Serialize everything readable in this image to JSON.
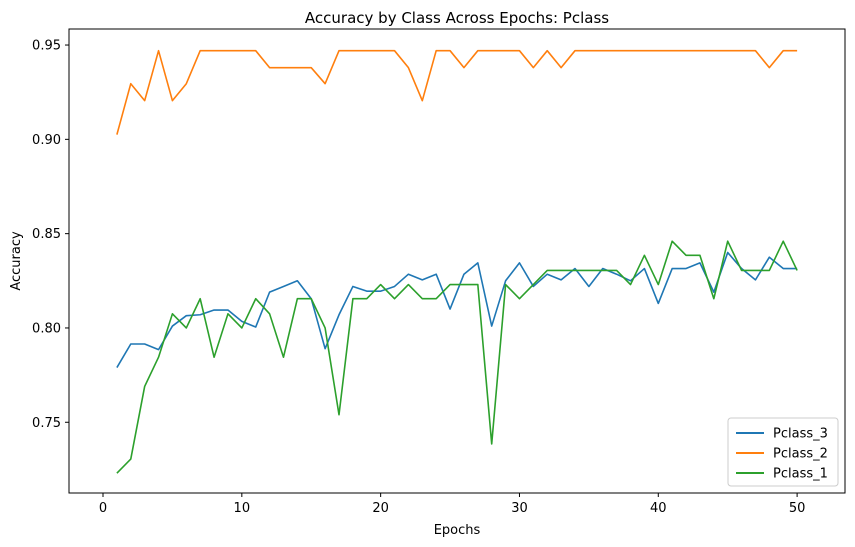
{
  "chart_data": {
    "type": "line",
    "title": "Accuracy by Class Across Epochs: Pclass",
    "xlabel": "Epochs",
    "ylabel": "Accuracy",
    "xlim": [
      -2.45,
      53.45
    ],
    "ylim": [
      0.7125,
      0.9585
    ],
    "xticks": [
      0,
      10,
      20,
      30,
      40,
      50
    ],
    "yticks": [
      0.75,
      0.8,
      0.85,
      0.9,
      0.95
    ],
    "ytick_labels": [
      "0.75",
      "0.80",
      "0.85",
      "0.90",
      "0.95"
    ],
    "grid": false,
    "legend_position": "lower-right",
    "x": [
      1,
      2,
      3,
      4,
      5,
      6,
      7,
      8,
      9,
      10,
      11,
      12,
      13,
      14,
      15,
      16,
      17,
      18,
      19,
      20,
      21,
      22,
      23,
      24,
      25,
      26,
      27,
      28,
      29,
      30,
      31,
      32,
      33,
      34,
      35,
      36,
      37,
      38,
      39,
      40,
      41,
      42,
      43,
      44,
      45,
      46,
      47,
      48,
      49,
      50
    ],
    "series": [
      {
        "name": "Pclass_3",
        "color": "#1f77b4",
        "values": [
          0.779,
          0.7915,
          0.7915,
          0.7885,
          0.801,
          0.8065,
          0.807,
          0.8095,
          0.8095,
          0.8035,
          0.8005,
          0.819,
          0.822,
          0.825,
          0.8155,
          0.789,
          0.807,
          0.822,
          0.8195,
          0.8195,
          0.822,
          0.8285,
          0.8255,
          0.8285,
          0.81,
          0.8285,
          0.8345,
          0.801,
          0.825,
          0.8345,
          0.822,
          0.8285,
          0.8255,
          0.8315,
          0.822,
          0.8315,
          0.8285,
          0.825,
          0.8315,
          0.813,
          0.8315,
          0.8315,
          0.8345,
          0.819,
          0.84,
          0.8315,
          0.8255,
          0.8375,
          0.8315,
          0.8315
        ]
      },
      {
        "name": "Pclass_2",
        "color": "#ff7f0e",
        "values": [
          0.9025,
          0.9295,
          0.9205,
          0.947,
          0.9205,
          0.9295,
          0.947,
          0.947,
          0.947,
          0.947,
          0.947,
          0.938,
          0.938,
          0.938,
          0.938,
          0.9295,
          0.947,
          0.947,
          0.947,
          0.947,
          0.947,
          0.938,
          0.9205,
          0.947,
          0.947,
          0.938,
          0.947,
          0.947,
          0.947,
          0.947,
          0.938,
          0.947,
          0.938,
          0.947,
          0.947,
          0.947,
          0.947,
          0.947,
          0.947,
          0.947,
          0.947,
          0.947,
          0.947,
          0.947,
          0.947,
          0.947,
          0.947,
          0.938,
          0.947,
          0.947
        ]
      },
      {
        "name": "Pclass_1",
        "color": "#2ca02c",
        "values": [
          0.723,
          0.7305,
          0.769,
          0.7845,
          0.8075,
          0.8,
          0.8155,
          0.7845,
          0.8075,
          0.8,
          0.8155,
          0.8075,
          0.7845,
          0.8155,
          0.8155,
          0.8,
          0.754,
          0.8155,
          0.8155,
          0.823,
          0.8155,
          0.823,
          0.8155,
          0.8155,
          0.823,
          0.823,
          0.823,
          0.7385,
          0.823,
          0.8155,
          0.823,
          0.8305,
          0.8305,
          0.8305,
          0.8305,
          0.8305,
          0.8305,
          0.823,
          0.8385,
          0.823,
          0.846,
          0.8385,
          0.8385,
          0.8155,
          0.846,
          0.8305,
          0.8305,
          0.8305,
          0.846,
          0.8305
        ]
      }
    ]
  }
}
